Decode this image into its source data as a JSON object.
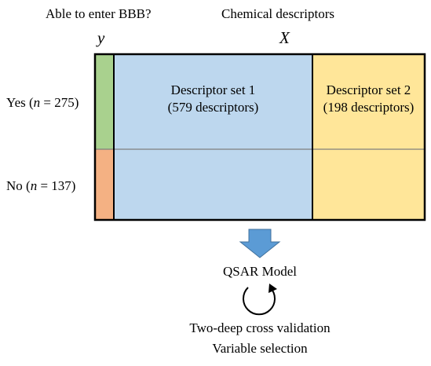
{
  "headers": {
    "y_title": "Able to enter BBB?",
    "y_symbol": "y",
    "x_title": "Chemical descriptors",
    "x_symbol": "X"
  },
  "rows": {
    "yes": {
      "label": "Yes",
      "n_label": "n",
      "eq": " = 275)"
    },
    "no": {
      "label": "No",
      "n_label": "n",
      "eq": " = 137)"
    }
  },
  "descriptor_sets": {
    "set1": {
      "title": "Descriptor set 1",
      "count": "(579 descriptors)"
    },
    "set2": {
      "title": "Descriptor set 2",
      "count": "(198 descriptors)"
    }
  },
  "model": {
    "label": "QSAR Model",
    "validation": "Two-deep cross validation",
    "selection": "Variable selection"
  },
  "colors": {
    "yes_green": "#a9d18e",
    "no_orange": "#f4b183",
    "set1_blue": "#bdd7ee",
    "set2_yellow": "#ffe699",
    "arrow_blue": "#5b9bd5",
    "divider_gray": "#7f7f7f"
  }
}
